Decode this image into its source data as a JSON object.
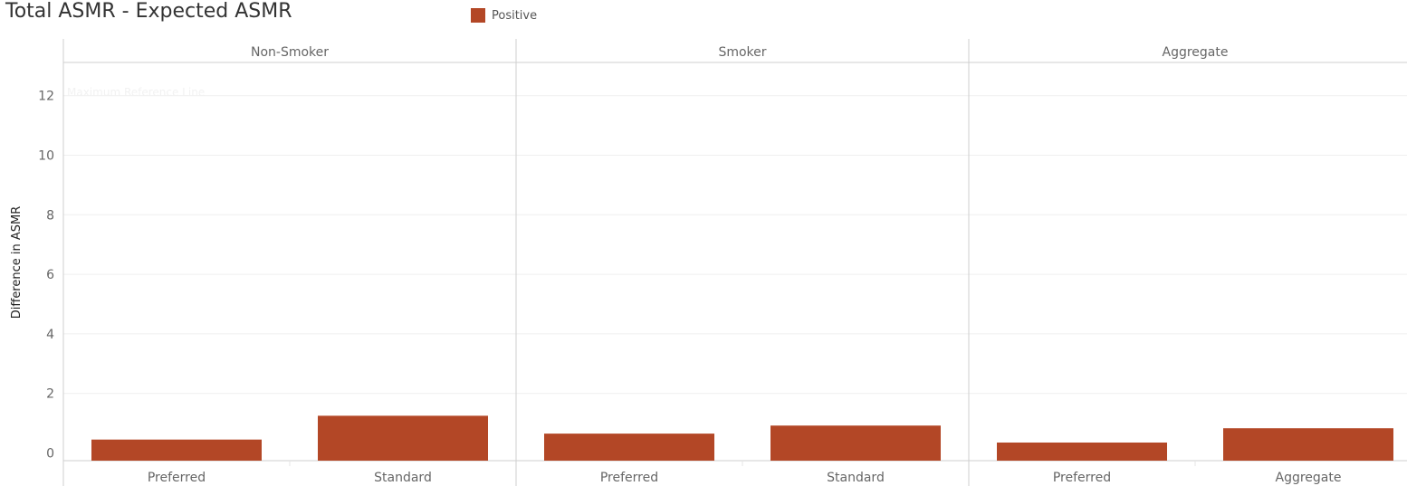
{
  "title": "Total ASMR - Expected ASMR",
  "legend": {
    "label": "Positive",
    "color": "#b34726"
  },
  "chart_data": {
    "type": "bar",
    "ylabel": "Difference in ASMR",
    "ylim": [
      -0.25,
      13.7
    ],
    "yticks": [
      0,
      2,
      4,
      6,
      8,
      10,
      12
    ],
    "grid": true,
    "reference_line": {
      "label": "Maximum Reference Line"
    },
    "panels": [
      {
        "name": "Non-Smoker",
        "categories": [
          "Preferred",
          "Standard"
        ],
        "values": [
          0.45,
          1.25
        ]
      },
      {
        "name": "Smoker",
        "categories": [
          "Preferred",
          "Standard"
        ],
        "values": [
          0.65,
          0.92
        ]
      },
      {
        "name": "Aggregate",
        "categories": [
          "Preferred",
          "Aggregate"
        ],
        "values": [
          0.35,
          0.83
        ]
      }
    ],
    "series": [
      {
        "name": "Positive"
      }
    ]
  }
}
